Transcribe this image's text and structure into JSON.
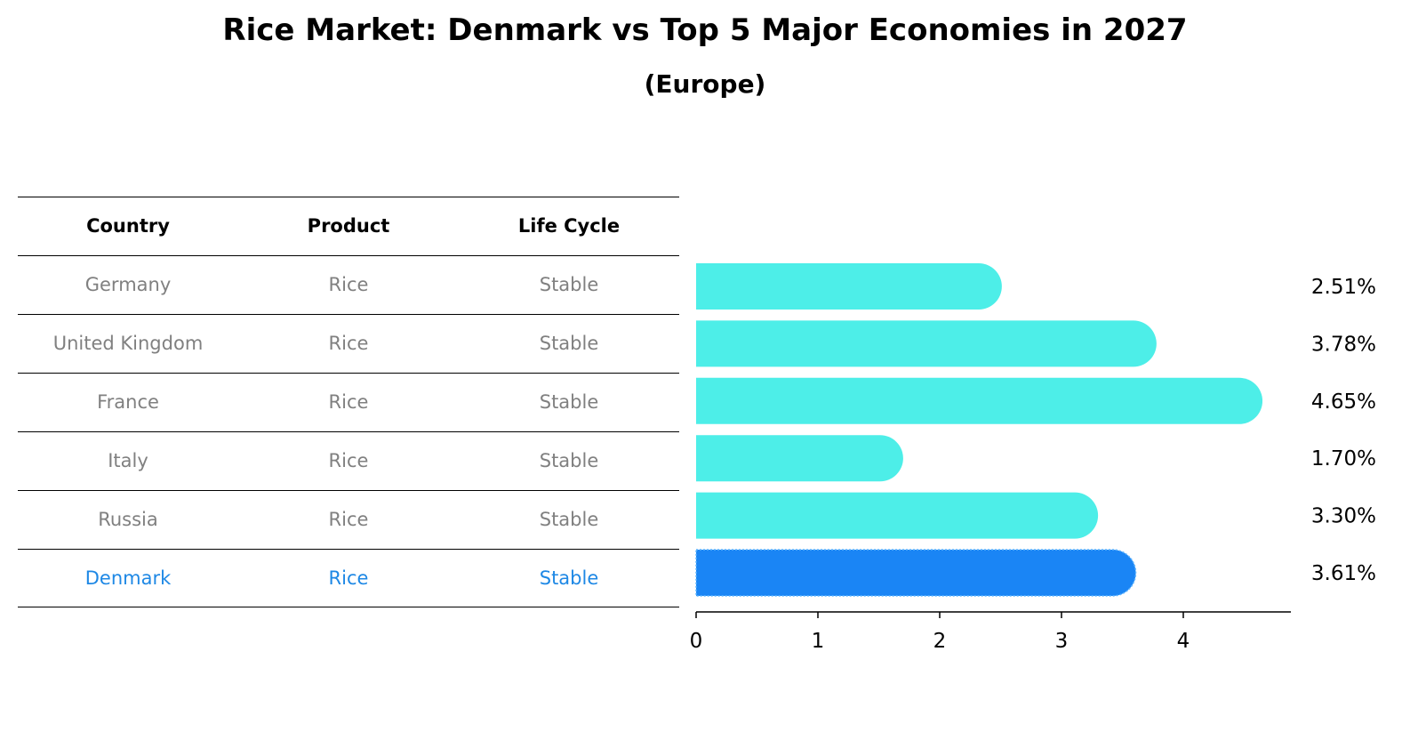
{
  "title": "Rice Market: Denmark vs Top 5 Major Economies in 2027",
  "subtitle": "(Europe)",
  "table": {
    "headers": [
      "Country",
      "Product",
      "Life Cycle"
    ],
    "rows": [
      [
        "Germany",
        "Rice",
        "Stable"
      ],
      [
        "United Kingdom",
        "Rice",
        "Stable"
      ],
      [
        "France",
        "Rice",
        "Stable"
      ],
      [
        "Italy",
        "Rice",
        "Stable"
      ],
      [
        "Russia",
        "Rice",
        "Stable"
      ],
      [
        "Denmark",
        "Rice",
        "Stable"
      ]
    ],
    "highlight_row": 5,
    "colors": {
      "text": "#808080",
      "highlight": "#1e88e5"
    }
  },
  "chart_data": {
    "type": "bar",
    "orientation": "horizontal",
    "categories": [
      "Germany",
      "United Kingdom",
      "France",
      "Italy",
      "Russia",
      "Denmark"
    ],
    "values": [
      2.51,
      3.78,
      4.65,
      1.7,
      3.3,
      3.61
    ],
    "value_labels": [
      "2.51%",
      "3.78%",
      "4.65%",
      "1.70%",
      "3.30%",
      "3.61%"
    ],
    "xlim": [
      0,
      4.9
    ],
    "xticks": [
      "0",
      "1",
      "2",
      "3",
      "4"
    ],
    "grid": false,
    "colors": {
      "bar": "#4deee8",
      "highlight": "#1a85f5"
    },
    "highlight_index": 5
  }
}
